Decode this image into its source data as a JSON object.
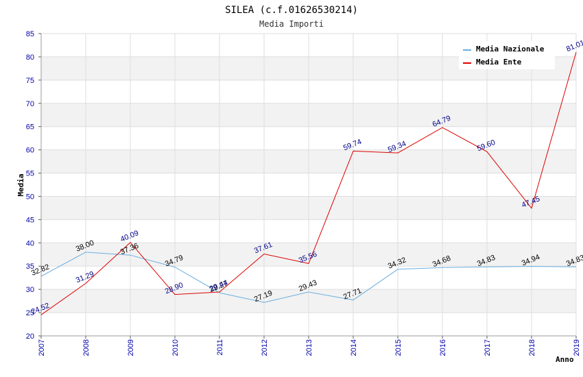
{
  "chart_data": {
    "type": "line",
    "title": "SILEA (c.f.01626530214)",
    "subtitle": "Media Importi",
    "xlabel": "Anno",
    "ylabel": "Media",
    "ylim": [
      20,
      85
    ],
    "yticks": [
      "20",
      "25",
      "30",
      "35",
      "40",
      "45",
      "50",
      "55",
      "60",
      "65",
      "70",
      "75",
      "80",
      "85"
    ],
    "categories": [
      "2007",
      "2008",
      "2009",
      "2010",
      "2011",
      "2012",
      "2013",
      "2014",
      "2015",
      "2016",
      "2017",
      "2018",
      "2019"
    ],
    "grid": true,
    "legend_position": "top-right",
    "series": [
      {
        "name": "Media Nazionale",
        "color": "#6aaee0",
        "label_color": "#000000",
        "values": [
          32.82,
          38.0,
          37.36,
          34.79,
          29.27,
          27.19,
          29.43,
          27.71,
          34.32,
          34.68,
          34.83,
          34.94,
          34.83
        ],
        "labels": [
          "32.82",
          "38.00",
          "37.36",
          "34.79",
          "29.27",
          "27.19",
          "29.43",
          "27.71",
          "34.32",
          "34.68",
          "34.83",
          "34.94",
          "34.83"
        ]
      },
      {
        "name": "Media Ente",
        "color": "#dd0000",
        "label_color": "#000088",
        "values": [
          24.52,
          31.29,
          40.09,
          28.9,
          29.44,
          37.61,
          35.56,
          59.74,
          59.34,
          64.79,
          59.6,
          47.45,
          81.01
        ],
        "labels": [
          "24.52",
          "31.29",
          "40.09",
          "28.90",
          "29.44",
          "37.61",
          "35.56",
          "59.74",
          "59.34",
          "64.79",
          "59.60",
          "47.45",
          "81.01"
        ]
      }
    ]
  }
}
